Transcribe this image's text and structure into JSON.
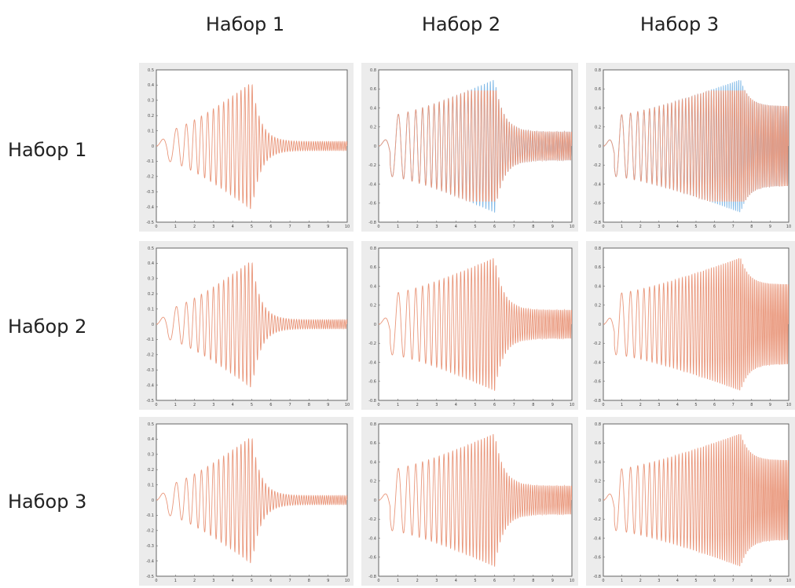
{
  "column_headers": [
    "Набор 1",
    "Набор 2",
    "Набор 3"
  ],
  "row_headers": [
    "Набор 1",
    "Набор 2",
    "Набор 3"
  ],
  "colors": {
    "signal": "#e9967a",
    "limited": "#7fb8e6",
    "background": "#ececec"
  },
  "chart_data": [
    {
      "type": "line",
      "row": 1,
      "col": 1,
      "series": [
        {
          "name": "",
          "values": []
        }
      ],
      "xlim": [
        0,
        10
      ],
      "ylim": [
        -0.5,
        0.5
      ],
      "x_ticks": [
        "0",
        "1",
        "2",
        "3",
        "4",
        "5",
        "6",
        "7",
        "8",
        "9",
        "10"
      ],
      "y_ticks": [
        "0.5",
        "0.4",
        "0.3",
        "0.2",
        "0.1",
        "0",
        "-0.1",
        "-0.2",
        "-0.3",
        "-0.4",
        "-0.5"
      ],
      "signal": {
        "peak_time": 5.0,
        "peak_amplitude": 0.42,
        "tail_amplitude": 0.03,
        "end_frequency": 10
      },
      "clip_level": null
    },
    {
      "type": "line",
      "row": 1,
      "col": 2,
      "xlim": [
        0,
        10
      ],
      "ylim": [
        -0.8,
        0.8
      ],
      "x_ticks": [
        "0",
        "1",
        "2",
        "3",
        "4",
        "5",
        "6",
        "7",
        "8",
        "9",
        "10"
      ],
      "y_ticks": [
        "0.8",
        "0.6",
        "0.4",
        "0.2",
        "0",
        "-0.2",
        "-0.4",
        "-0.6",
        "-0.8"
      ],
      "signal": {
        "peak_time": 6.0,
        "peak_amplitude": 0.7,
        "tail_amplitude": 0.15,
        "end_frequency": 11
      },
      "clip_level": 0.58
    },
    {
      "type": "line",
      "row": 1,
      "col": 3,
      "xlim": [
        0,
        10
      ],
      "ylim": [
        -0.8,
        0.8
      ],
      "x_ticks": [
        "0",
        "1",
        "2",
        "3",
        "4",
        "5",
        "6",
        "7",
        "8",
        "9",
        "10"
      ],
      "y_ticks": [
        "0.8",
        "0.6",
        "0.4",
        "0.2",
        "0",
        "-0.2",
        "-0.4",
        "-0.6",
        "-0.8"
      ],
      "signal": {
        "peak_time": 7.4,
        "peak_amplitude": 0.7,
        "tail_amplitude": 0.42,
        "end_frequency": 12
      },
      "clip_level": 0.58
    },
    {
      "type": "line",
      "row": 2,
      "col": 1,
      "xlim": [
        0,
        10
      ],
      "ylim": [
        -0.5,
        0.5
      ],
      "x_ticks": [
        "0",
        "1",
        "2",
        "3",
        "4",
        "5",
        "6",
        "7",
        "8",
        "9",
        "10"
      ],
      "y_ticks": [
        "0.5",
        "0.4",
        "0.3",
        "0.2",
        "0.1",
        "0",
        "-0.1",
        "-0.2",
        "-0.3",
        "-0.4",
        "-0.5"
      ],
      "signal": {
        "peak_time": 5.0,
        "peak_amplitude": 0.42,
        "tail_amplitude": 0.03,
        "end_frequency": 10
      },
      "clip_level": null
    },
    {
      "type": "line",
      "row": 2,
      "col": 2,
      "xlim": [
        0,
        10
      ],
      "ylim": [
        -0.8,
        0.8
      ],
      "x_ticks": [
        "0",
        "1",
        "2",
        "3",
        "4",
        "5",
        "6",
        "7",
        "8",
        "9",
        "10"
      ],
      "y_ticks": [
        "0.8",
        "0.6",
        "0.4",
        "0.2",
        "0",
        "-0.2",
        "-0.4",
        "-0.6",
        "-0.8"
      ],
      "signal": {
        "peak_time": 6.0,
        "peak_amplitude": 0.7,
        "tail_amplitude": 0.15,
        "end_frequency": 11
      },
      "clip_level": null
    },
    {
      "type": "line",
      "row": 2,
      "col": 3,
      "xlim": [
        0,
        10
      ],
      "ylim": [
        -0.8,
        0.8
      ],
      "x_ticks": [
        "0",
        "1",
        "2",
        "3",
        "4",
        "5",
        "6",
        "7",
        "8",
        "9",
        "10"
      ],
      "y_ticks": [
        "0.8",
        "0.6",
        "0.4",
        "0.2",
        "0",
        "-0.2",
        "-0.4",
        "-0.6",
        "-0.8"
      ],
      "signal": {
        "peak_time": 7.4,
        "peak_amplitude": 0.7,
        "tail_amplitude": 0.42,
        "end_frequency": 12
      },
      "clip_level": null
    },
    {
      "type": "line",
      "row": 3,
      "col": 1,
      "xlim": [
        0,
        10
      ],
      "ylim": [
        -0.5,
        0.5
      ],
      "x_ticks": [
        "0",
        "1",
        "2",
        "3",
        "4",
        "5",
        "6",
        "7",
        "8",
        "9",
        "10"
      ],
      "y_ticks": [
        "0.5",
        "0.4",
        "0.3",
        "0.2",
        "0.1",
        "0",
        "-0.1",
        "-0.2",
        "-0.3",
        "-0.4",
        "-0.5"
      ],
      "signal": {
        "peak_time": 5.0,
        "peak_amplitude": 0.42,
        "tail_amplitude": 0.03,
        "end_frequency": 10
      },
      "clip_level": null
    },
    {
      "type": "line",
      "row": 3,
      "col": 2,
      "xlim": [
        0,
        10
      ],
      "ylim": [
        -0.8,
        0.8
      ],
      "x_ticks": [
        "0",
        "1",
        "2",
        "3",
        "4",
        "5",
        "6",
        "7",
        "8",
        "9",
        "10"
      ],
      "y_ticks": [
        "0.8",
        "0.6",
        "0.4",
        "0.2",
        "0",
        "-0.2",
        "-0.4",
        "-0.6",
        "-0.8"
      ],
      "signal": {
        "peak_time": 6.0,
        "peak_amplitude": 0.7,
        "tail_amplitude": 0.15,
        "end_frequency": 11
      },
      "clip_level": null
    },
    {
      "type": "line",
      "row": 3,
      "col": 3,
      "xlim": [
        0,
        10
      ],
      "ylim": [
        -0.8,
        0.8
      ],
      "x_ticks": [
        "0",
        "1",
        "2",
        "3",
        "4",
        "5",
        "6",
        "7",
        "8",
        "9",
        "10"
      ],
      "y_ticks": [
        "0.8",
        "0.6",
        "0.4",
        "0.2",
        "0",
        "-0.2",
        "-0.4",
        "-0.6",
        "-0.8"
      ],
      "signal": {
        "peak_time": 7.4,
        "peak_amplitude": 0.7,
        "tail_amplitude": 0.42,
        "end_frequency": 12
      },
      "clip_level": null
    }
  ]
}
